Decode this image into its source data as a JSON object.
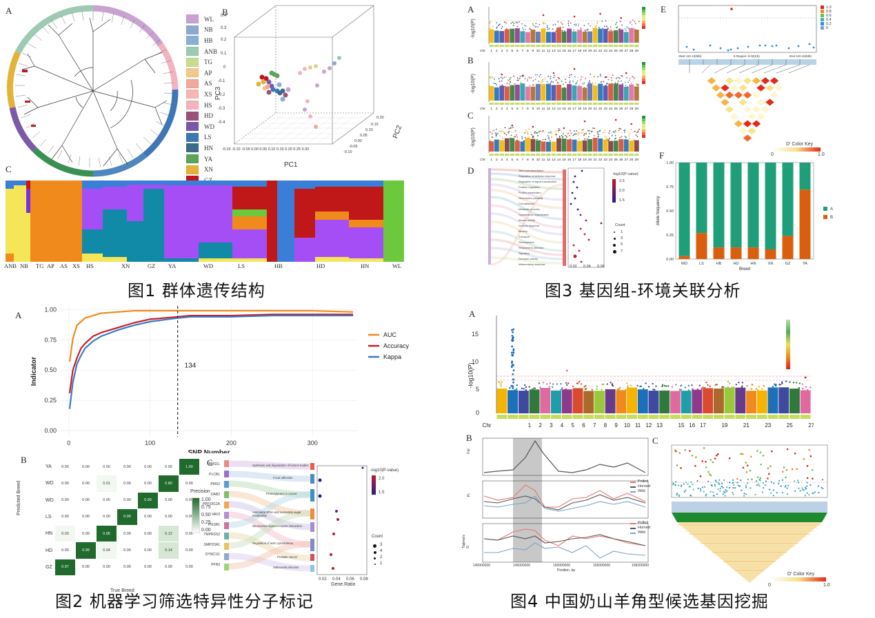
{
  "captions": {
    "fig1": "图1 群体遗传结构",
    "fig2": "图2 机器学习筛选特异性分子标记",
    "fig3": "图3 基因组-环境关联分析",
    "fig4": "图4 中国奶山羊角型候选基因挖掘"
  },
  "panel_labels": {
    "f1a": "A",
    "f1b": "B",
    "f1c": "C",
    "f2a": "A",
    "f2b": "B",
    "f2c": "C",
    "f3a": "A",
    "f3b": "B",
    "f3c": "C",
    "f3d": "D",
    "f3e": "E",
    "f3f": "F",
    "f4a": "A",
    "f4b": "B",
    "f4c": "C"
  },
  "fig1": {
    "breeds": [
      {
        "code": "WL",
        "color": "#c9a3cf"
      },
      {
        "code": "NB",
        "color": "#8fa8d0"
      },
      {
        "code": "HB",
        "color": "#8ab0d6"
      },
      {
        "code": "ANB",
        "color": "#9ec9b3"
      },
      {
        "code": "TG",
        "color": "#c6dc8e"
      },
      {
        "code": "AP",
        "color": "#f3c98b"
      },
      {
        "code": "AS",
        "color": "#f2a89a"
      },
      {
        "code": "XS",
        "color": "#f6b7b2"
      },
      {
        "code": "HS",
        "color": "#f3b3c0"
      },
      {
        "code": "HD",
        "color": "#9b5178"
      },
      {
        "code": "WD",
        "color": "#7a5aa8"
      },
      {
        "code": "LS",
        "color": "#3f77b5"
      },
      {
        "code": "HN",
        "color": "#3b6b8a"
      },
      {
        "code": "YA",
        "color": "#5aa55a"
      },
      {
        "code": "XN",
        "color": "#e3b339"
      },
      {
        "code": "GZ",
        "color": "#c0161d"
      }
    ],
    "pca": {
      "xlabel": "PC1",
      "ylabel": "PC3",
      "zlabel": "PC2",
      "xticks": [
        "-0.15",
        "-0.10",
        "-0.05",
        "0.00",
        "0.05",
        "0.10",
        "0.15",
        "0.20",
        "0.25",
        "0.30"
      ],
      "yticks": [
        "0.4",
        "0.3",
        "0.2",
        "0.1",
        "0",
        "-0.1",
        "-0.2",
        "-0.3",
        "-0.4"
      ],
      "zticks": [
        "0.20",
        "0.15",
        "0.10",
        "0.05",
        "0.00",
        "-0.05",
        "-0.10"
      ]
    },
    "structure_labels": [
      "ANB",
      "NB",
      "TG",
      "AP",
      "AS",
      "XS",
      "HS",
      "XN",
      "GZ",
      "YA",
      "WD",
      "LS",
      "HB",
      "HD",
      "HN",
      "WL"
    ]
  },
  "fig2": {
    "chart_data": {
      "type": "line",
      "xlabel": "SNP Number",
      "ylabel": "Indicator",
      "xlim": [
        -10,
        355
      ],
      "ylim": [
        -0.05,
        1.03
      ],
      "xticks": [
        "0",
        "100",
        "200",
        "300"
      ],
      "yticks": [
        "1.00",
        "0.75",
        "0.50",
        "0.25",
        "0.00"
      ],
      "vline_label": "134",
      "series": [
        {
          "name": "AUC",
          "color": "#f08a1c",
          "x": [
            1,
            5,
            10,
            15,
            20,
            30,
            40,
            60,
            80,
            100,
            134,
            150,
            200,
            250,
            300,
            350
          ],
          "values": [
            0.57,
            0.76,
            0.87,
            0.9,
            0.93,
            0.95,
            0.97,
            0.98,
            0.99,
            0.99,
            0.99,
            0.99,
            0.99,
            0.99,
            0.99,
            0.98
          ]
        },
        {
          "name": "Accuracy",
          "color": "#c81e2a",
          "x": [
            1,
            5,
            10,
            15,
            20,
            30,
            40,
            60,
            80,
            100,
            134,
            150,
            200,
            250,
            300,
            350
          ],
          "values": [
            0.31,
            0.5,
            0.6,
            0.68,
            0.72,
            0.78,
            0.81,
            0.85,
            0.89,
            0.92,
            0.94,
            0.95,
            0.95,
            0.96,
            0.96,
            0.96
          ]
        },
        {
          "name": "Kappa",
          "color": "#3a7bbf",
          "x": [
            1,
            5,
            10,
            15,
            20,
            30,
            40,
            60,
            80,
            100,
            134,
            150,
            200,
            250,
            300,
            350
          ],
          "values": [
            0.18,
            0.4,
            0.55,
            0.62,
            0.68,
            0.74,
            0.78,
            0.83,
            0.87,
            0.9,
            0.93,
            0.94,
            0.94,
            0.95,
            0.95,
            0.95
          ]
        }
      ]
    },
    "confusion": {
      "predicted_label": "Predicted Breed",
      "true_label": "True Breed",
      "legend_title": "Precision",
      "legend_ticks": [
        "1.00",
        "0.75",
        "0.50",
        "0.25",
        "0.00"
      ],
      "row_labels": [
        "YA",
        "WD",
        "WD",
        "LS",
        "HN",
        "HD",
        "GZ"
      ],
      "rows": [
        [
          "0.00",
          "0.00",
          "0.00",
          "0.00",
          "0.00",
          "0.00",
          "1.00"
        ],
        [
          "0.00",
          "0.00",
          "0.01",
          "0.00",
          "0.00",
          "0.80",
          "0.00"
        ],
        [
          "0.00",
          "0.00",
          "0.00",
          "0.00",
          "0.99",
          "0.00",
          "0.00"
        ],
        [
          "0.00",
          "0.00",
          "0.00",
          "0.99",
          "0.00",
          "0.00",
          "0.00"
        ],
        [
          "0.03",
          "0.00",
          "0.96",
          "0.00",
          "0.00",
          "0.12",
          "0.00"
        ],
        [
          "0.00",
          "0.99",
          "0.04",
          "0.00",
          "0.00",
          "0.14",
          "0.00"
        ],
        [
          "0.97",
          "0.00",
          "0.00",
          "0.00",
          "0.00",
          "0.00",
          "0.00"
        ]
      ]
    },
    "sankey": {
      "genes": [
        "BMS1L",
        "PLCB1",
        "PMS2",
        "DAB2",
        "PPP1R12A",
        "VAV3",
        "PIK3R1",
        "TMPRSS2",
        "SMPD3A1",
        "DYNC1I1",
        "PFN3",
        "DYNC1I2"
      ],
      "terms": [
        "Synthesis and degradation of ketone bodies",
        "Focal adhesion",
        "Proteoglycans in cancer",
        "Aminoacyl-tRNA and nucleotide sugar metabolism",
        "Neuroactive ligand-receptor interaction",
        "Regulation of actin cytoskeleton",
        "Prostate cancer",
        "Salmonella infection"
      ],
      "xlabel": "Gene.Ratio",
      "xticks": [
        "0.02",
        "0.04",
        "0.06",
        "0.08"
      ],
      "legend_p_title": "-log10(P-value)",
      "legend_p_ticks": [
        "2.0",
        "1.5"
      ],
      "legend_count_title": "Count",
      "legend_count_ticks": [
        "3",
        "4",
        "2",
        "1"
      ]
    }
  },
  "fig3": {
    "chr_labels": [
      "Chr",
      "1",
      "2",
      "3",
      "4",
      "5",
      "6",
      "7",
      "8",
      "9",
      "10",
      "11",
      "12",
      "13",
      "14",
      "15",
      "16",
      "17",
      "18",
      "19",
      "20",
      "21",
      "22",
      "23",
      "24",
      "25",
      "26",
      "27",
      "28",
      "29"
    ],
    "ylabel": "-log10(P)",
    "e_ticks_x": [
      "Start 110.13(Mb)",
      "5 Region: 6.02(Kb)",
      "End 110.16(Mb)"
    ],
    "e_legend_ticks": [
      "1.0",
      "0.8",
      "0.6",
      "0.4",
      "0.2",
      "0"
    ],
    "e_color_key": "D' Color Key",
    "e_key_min": "0",
    "e_key_max": "1.0",
    "f": {
      "chart_data": {
        "type": "bar",
        "stacked": true,
        "categories": [
          "WD",
          "LS",
          "HB",
          "HD",
          "HN",
          "XN",
          "GZ",
          "YA"
        ],
        "series": [
          {
            "name": "A",
            "color": "#1f9e7a",
            "values": [
              0.97,
              0.73,
              0.88,
              0.88,
              0.88,
              0.9,
              0.76,
              0.28
            ]
          },
          {
            "name": "B",
            "color": "#d95f0e",
            "values": [
              0.03,
              0.27,
              0.12,
              0.12,
              0.12,
              0.1,
              0.24,
              0.72
            ]
          }
        ],
        "xlabel": "Breed",
        "ylabel": "Allele frequency",
        "ylim": [
          0,
          1
        ],
        "yticks": [
          "1.00",
          "0.75",
          "0.50",
          "0.25",
          "0.00"
        ]
      }
    },
    "d": {
      "xticks": [
        "0.02",
        "0.04",
        "0.06"
      ],
      "legend_p_title": "-log10(P-value)",
      "legend_p_ticks": [
        "2.5",
        "2.0",
        "1.5"
      ],
      "legend_count_title": "Count",
      "legend_count_ticks": [
        "1",
        "3",
        "5",
        "7"
      ]
    }
  },
  "fig4": {
    "chr_labels": [
      "Chr",
      "1",
      "2",
      "3",
      "4",
      "5",
      "6",
      "7",
      "8",
      "9",
      "10",
      "11",
      "12",
      "13",
      "15",
      "16",
      "17",
      "19",
      "21",
      "23",
      "25",
      "27",
      "29"
    ],
    "yticks": [
      "15",
      "10",
      "5",
      "0"
    ],
    "ylabel": "-log10(P)",
    "b_legend": [
      "Polled",
      "Horned",
      "Wild"
    ],
    "b_ylabels": [
      "Fst",
      "Pi",
      "Tajima's D"
    ],
    "b_xticks": [
      "140000000",
      "145000000",
      "150000000",
      "155000000",
      "158200000"
    ],
    "b_xlabel": "Position, bp",
    "c_color_key": "D' Color Key",
    "c_key_min": "0",
    "c_key_max": "1.0"
  }
}
